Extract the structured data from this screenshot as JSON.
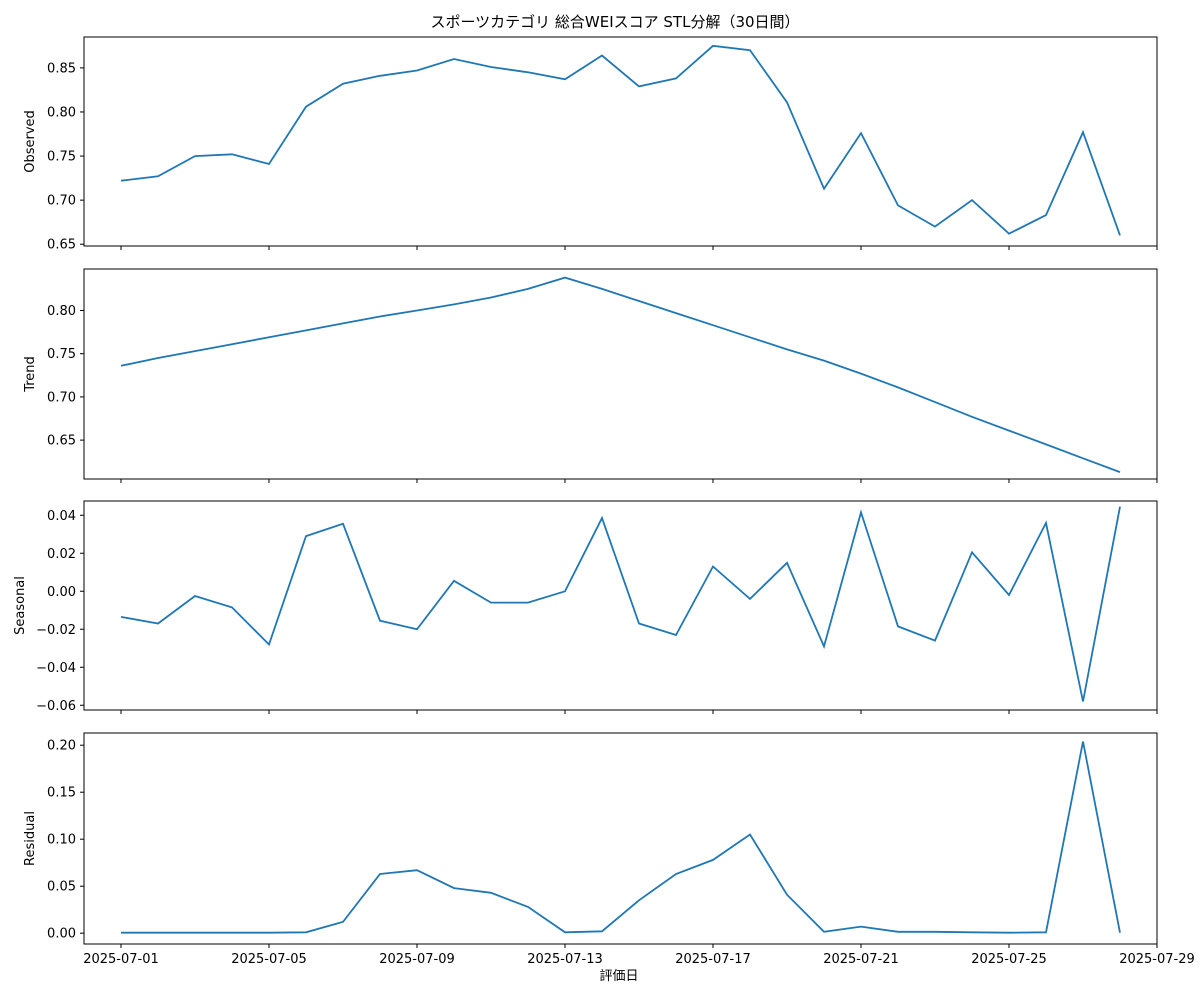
{
  "chart_data": {
    "type": "line",
    "title": "スポーツカテゴリ 総合WEIスコア STL分解（30日間）",
    "xlabel": "評価日",
    "x": [
      "2025-07-01",
      "2025-07-02",
      "2025-07-03",
      "2025-07-04",
      "2025-07-05",
      "2025-07-06",
      "2025-07-07",
      "2025-07-08",
      "2025-07-09",
      "2025-07-10",
      "2025-07-11",
      "2025-07-12",
      "2025-07-13",
      "2025-07-14",
      "2025-07-15",
      "2025-07-16",
      "2025-07-17",
      "2025-07-18",
      "2025-07-19",
      "2025-07-20",
      "2025-07-21",
      "2025-07-22",
      "2025-07-23",
      "2025-07-24",
      "2025-07-25",
      "2025-07-26",
      "2025-07-27",
      "2025-07-28"
    ],
    "xticks": [
      "2025-07-01",
      "2025-07-05",
      "2025-07-09",
      "2025-07-13",
      "2025-07-17",
      "2025-07-21",
      "2025-07-25",
      "2025-07-29"
    ],
    "xlim": [
      "2025-06-30",
      "2025-07-29"
    ],
    "color": "#1f77b4",
    "panels": [
      {
        "ylabel": "Observed",
        "ylim": [
          0.648,
          0.885
        ],
        "yticks": [
          0.65,
          0.7,
          0.75,
          0.8,
          0.85
        ],
        "ytick_labels": [
          "0.65",
          "0.70",
          "0.75",
          "0.80",
          "0.85"
        ],
        "values": [
          0.722,
          0.727,
          0.75,
          0.752,
          0.741,
          0.806,
          0.832,
          0.841,
          0.847,
          0.86,
          0.851,
          0.845,
          0.837,
          0.864,
          0.829,
          0.838,
          0.875,
          0.87,
          0.811,
          0.713,
          0.776,
          0.694,
          0.67,
          0.7,
          0.662,
          0.683,
          0.777,
          0.66
        ]
      },
      {
        "ylabel": "Trend",
        "ylim": [
          0.605,
          0.848
        ],
        "yticks": [
          0.65,
          0.7,
          0.75,
          0.8
        ],
        "ytick_labels": [
          "0.65",
          "0.70",
          "0.75",
          "0.80"
        ],
        "values": [
          0.736,
          0.745,
          0.753,
          0.761,
          0.769,
          0.777,
          0.785,
          0.793,
          0.8,
          0.807,
          0.815,
          0.825,
          0.838,
          0.825,
          0.811,
          0.797,
          0.783,
          0.769,
          0.755,
          0.742,
          0.727,
          0.711,
          0.694,
          0.677,
          0.661,
          0.645,
          0.629,
          0.613
        ]
      },
      {
        "ylabel": "Seasonal",
        "ylim": [
          -0.0625,
          0.0475
        ],
        "yticks": [
          -0.06,
          -0.04,
          -0.02,
          0.0,
          0.02,
          0.04
        ],
        "ytick_labels": [
          "−0.06",
          "−0.04",
          "−0.02",
          "0.00",
          "0.02",
          "0.04"
        ],
        "values": [
          -0.0135,
          -0.017,
          -0.0025,
          -0.0085,
          -0.028,
          0.029,
          0.0355,
          -0.0155,
          -0.02,
          0.0055,
          -0.006,
          -0.006,
          0.0,
          0.0385,
          -0.017,
          -0.023,
          0.013,
          -0.004,
          0.015,
          -0.029,
          0.0415,
          -0.0185,
          -0.026,
          0.0205,
          -0.002,
          0.036,
          -0.058,
          0.0445
        ]
      },
      {
        "ylabel": "Residual",
        "ylim": [
          -0.0115,
          0.213
        ],
        "yticks": [
          0.0,
          0.05,
          0.1,
          0.15,
          0.2
        ],
        "ytick_labels": [
          "0.00",
          "0.05",
          "0.10",
          "0.15",
          "0.20"
        ],
        "values": [
          0.0005,
          0.0005,
          0.0005,
          0.0005,
          0.0005,
          0.001,
          0.012,
          0.063,
          0.067,
          0.048,
          0.043,
          0.028,
          0.001,
          0.002,
          0.035,
          0.063,
          0.078,
          0.105,
          0.041,
          0.0015,
          0.007,
          0.0015,
          0.0015,
          0.001,
          0.0005,
          0.001,
          0.204,
          0.0005
        ]
      }
    ]
  }
}
